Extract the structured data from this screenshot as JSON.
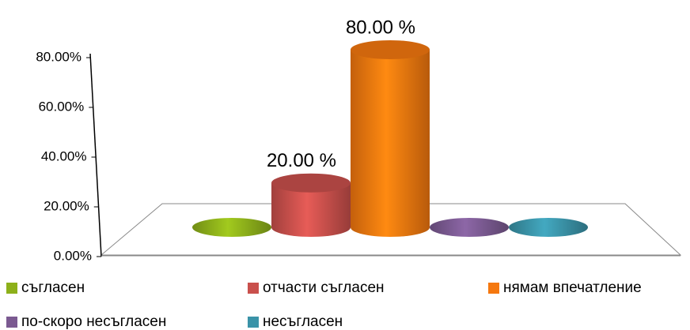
{
  "chart_data": {
    "type": "bar3d",
    "categories": [
      "съгласен",
      "отчасти съгласен",
      "нямам впечатление",
      "по-скоро несъгласен",
      "несъгласен"
    ],
    "series": [
      {
        "name": null,
        "values": [
          0,
          20,
          80,
          0,
          0
        ],
        "value_labels": [
          null,
          "20.00 %",
          "80.00 %",
          null,
          null
        ],
        "colors": [
          "#8db01a",
          "#c9504c",
          "#f5780f",
          "#7b5a91",
          "#3a93a8"
        ]
      }
    ],
    "ylim": [
      0,
      80
    ],
    "yticks": [
      {
        "value": 0,
        "label": "0.00%"
      },
      {
        "value": 20,
        "label": "20.00%"
      },
      {
        "value": 40,
        "label": "40.00%"
      },
      {
        "value": 60,
        "label": "60.00%"
      },
      {
        "value": 80,
        "label": "80.00%"
      }
    ],
    "legend": "bottom"
  }
}
